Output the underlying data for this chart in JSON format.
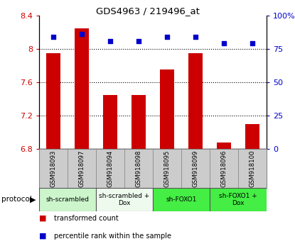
{
  "title": "GDS4963 / 219496_at",
  "samples": [
    "GSM918093",
    "GSM918097",
    "GSM918094",
    "GSM918098",
    "GSM918095",
    "GSM918099",
    "GSM918096",
    "GSM918100"
  ],
  "red_values": [
    7.95,
    8.25,
    7.45,
    7.45,
    7.75,
    7.95,
    6.88,
    7.1
  ],
  "blue_values": [
    84,
    86,
    81,
    81,
    84,
    84,
    79,
    79
  ],
  "ylim_left": [
    6.8,
    8.4
  ],
  "ylim_right": [
    0,
    100
  ],
  "yticks_left": [
    6.8,
    7.2,
    7.6,
    8.0,
    8.4
  ],
  "yticks_right": [
    0,
    25,
    50,
    75,
    100
  ],
  "ytick_labels_left": [
    "6.8",
    "7.2",
    "7.6",
    "8",
    "8.4"
  ],
  "ytick_labels_right": [
    "0",
    "25",
    "50",
    "75",
    "100%"
  ],
  "dotted_lines": [
    8.0,
    7.6,
    7.2
  ],
  "protocol_groups": [
    {
      "label": "sh-scrambled",
      "start": 0,
      "end": 1,
      "color": "#ccf5cc"
    },
    {
      "label": "sh-scrambled +\nDox",
      "start": 2,
      "end": 3,
      "color": "#eefaee"
    },
    {
      "label": "sh-FOXO1",
      "start": 4,
      "end": 5,
      "color": "#44ee44"
    },
    {
      "label": "sh-FOXO1 +\nDox",
      "start": 6,
      "end": 7,
      "color": "#44ee44"
    }
  ],
  "bar_color": "#cc0000",
  "dot_color": "#0000cc",
  "bar_width": 0.5,
  "tick_color_left": "#cc0000",
  "tick_color_right": "#0000cc",
  "legend_red": "transformed count",
  "legend_blue": "percentile rank within the sample",
  "sample_bg_color": "#cccccc",
  "plot_bg_color": "#ffffff"
}
